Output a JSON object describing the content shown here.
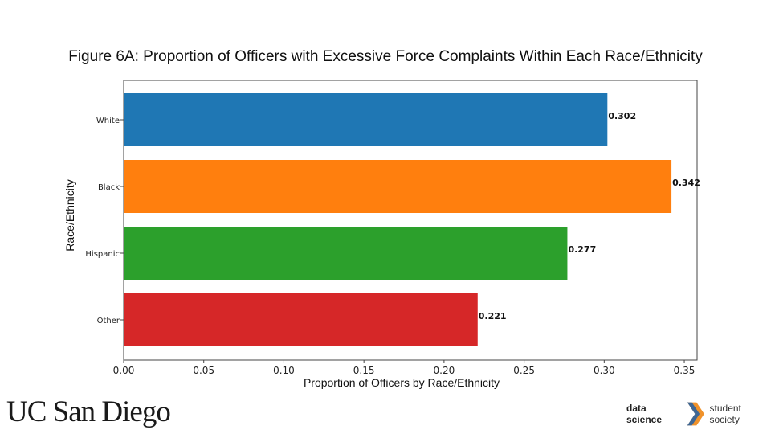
{
  "title": "Figure 6A: Proportion of Officers with Excessive Force Complaints Within Each Race/Ethnicity",
  "logos": {
    "ucsd": "UC San Diego",
    "ds3_left": "data science",
    "ds3_right": "student society"
  },
  "chart_data": {
    "type": "bar",
    "orientation": "horizontal",
    "title": "Figure 6A: Proportion of Officers with Excessive Force Complaints Within Each Race/Ethnicity",
    "xlabel": "Proportion of Officers by Race/Ethnicity",
    "ylabel": "Race/Ethnicity",
    "categories": [
      "White",
      "Black",
      "Hispanic",
      "Other"
    ],
    "values": [
      0.302,
      0.342,
      0.277,
      0.221
    ],
    "data_labels": [
      "0.302",
      "0.342",
      "0.277",
      "0.221"
    ],
    "colors": [
      "#1f77b4",
      "#ff7f0e",
      "#2ca02c",
      "#d62728"
    ],
    "xlim": [
      0,
      0.358
    ],
    "xticks": [
      0.0,
      0.05,
      0.1,
      0.15,
      0.2,
      0.25,
      0.3,
      0.35
    ],
    "xtick_labels": [
      "0.00",
      "0.05",
      "0.10",
      "0.15",
      "0.20",
      "0.25",
      "0.30",
      "0.35"
    ],
    "grid": false,
    "legend": "none"
  }
}
